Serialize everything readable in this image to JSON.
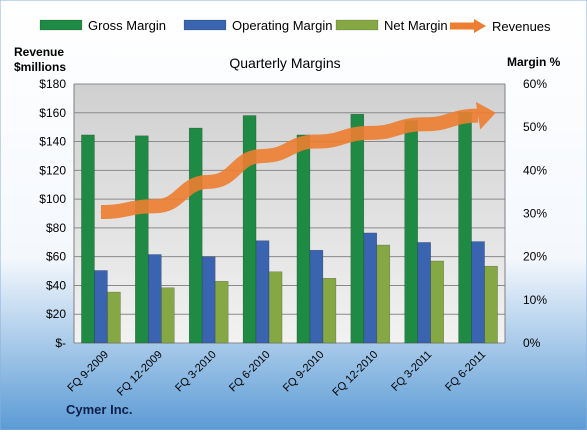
{
  "chart_data": {
    "type": "bar",
    "title": "Quarterly Margins",
    "left_axis_title_line1": "Revenue",
    "left_axis_title_line2": "$millions",
    "right_axis_title": "Margin %",
    "footer_label": "Cymer Inc.",
    "categories": [
      "FQ 9-2009",
      "FQ 12-2009",
      "FQ 3-2010",
      "FQ 6-2010",
      "FQ 9-2010",
      "FQ 12-2010",
      "FQ 3-2011",
      "FQ 6-2011"
    ],
    "left_ticks": [
      "$-",
      "$20",
      "$40",
      "$60",
      "$80",
      "$100",
      "$120",
      "$140",
      "$160",
      "$180"
    ],
    "right_ticks": [
      "0%",
      "10%",
      "20%",
      "30%",
      "40%",
      "50%",
      "60%"
    ],
    "ylim_left": [
      0,
      180
    ],
    "ylim_right": [
      0,
      60
    ],
    "grid": true,
    "legend_position": "top",
    "series": [
      {
        "name": "Gross Margin",
        "axis": "right",
        "color": "#1e8a44",
        "values": [
          48.2,
          48.0,
          49.8,
          52.7,
          48.2,
          53.0,
          51.5,
          53.5
        ]
      },
      {
        "name": "Operating Margin",
        "axis": "right",
        "color": "#3a64b0",
        "values": [
          16.8,
          20.5,
          20.0,
          23.7,
          21.5,
          25.5,
          23.3,
          23.5
        ]
      },
      {
        "name": "Net Margin",
        "axis": "right",
        "color": "#86a844",
        "values": [
          11.8,
          12.8,
          14.3,
          16.5,
          15.0,
          22.7,
          19.0,
          17.8
        ]
      },
      {
        "name": "Revenues",
        "axis": "left",
        "type": "line",
        "color": "#ed7d31",
        "values": [
          91,
          95,
          112,
          130,
          140,
          146,
          152,
          158
        ]
      }
    ]
  }
}
